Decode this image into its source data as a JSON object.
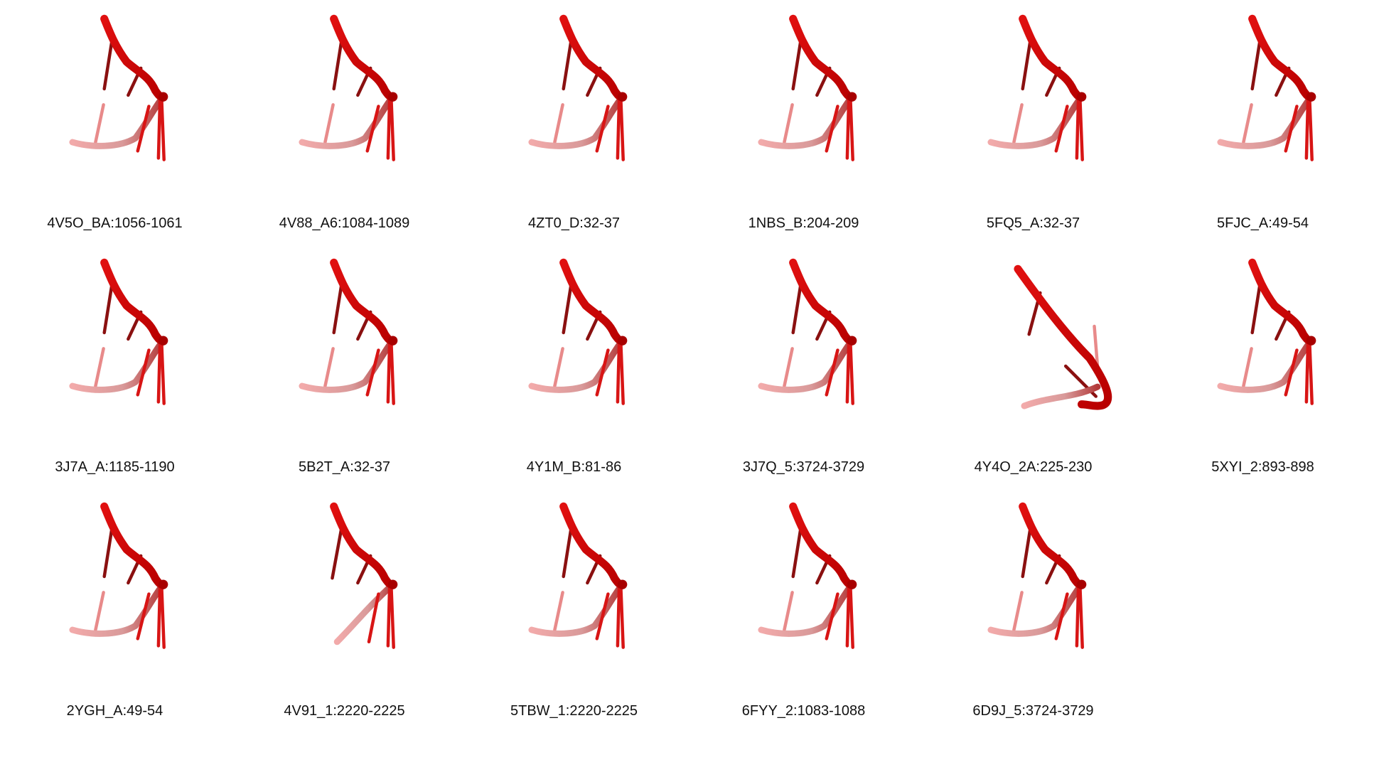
{
  "figure": {
    "colors": {
      "strand": "#d40000",
      "strand_light": "#f2aaaa",
      "base_dark": "#8a1010",
      "base": "#d81515",
      "base_light": "#e88a8a"
    },
    "panels": [
      {
        "label": "4V5O_BA:1056-1061",
        "variant": "standard"
      },
      {
        "label": "4V88_A6:1084-1089",
        "variant": "standard"
      },
      {
        "label": "4ZT0_D:32-37",
        "variant": "standard"
      },
      {
        "label": "1NBS_B:204-209",
        "variant": "standard"
      },
      {
        "label": "5FQ5_A:32-37",
        "variant": "standard"
      },
      {
        "label": "5FJC_A:49-54",
        "variant": "standard"
      },
      {
        "label": "3J7A_A:1185-1190",
        "variant": "standard"
      },
      {
        "label": "5B2T_A:32-37",
        "variant": "standard"
      },
      {
        "label": "4Y1M_B:81-86",
        "variant": "standard"
      },
      {
        "label": "3J7Q_5:3724-3729",
        "variant": "standard"
      },
      {
        "label": "4Y4O_2A:225-230",
        "variant": "hook"
      },
      {
        "label": "5XYI_2:893-898",
        "variant": "standard"
      },
      {
        "label": "2YGH_A:49-54",
        "variant": "standard"
      },
      {
        "label": "4V91_1:2220-2225",
        "variant": "short"
      },
      {
        "label": "5TBW_1:2220-2225",
        "variant": "standard"
      },
      {
        "label": "6FYY_2:1083-1088",
        "variant": "standard"
      },
      {
        "label": "6D9J_5:3724-3729",
        "variant": "standard"
      }
    ]
  }
}
